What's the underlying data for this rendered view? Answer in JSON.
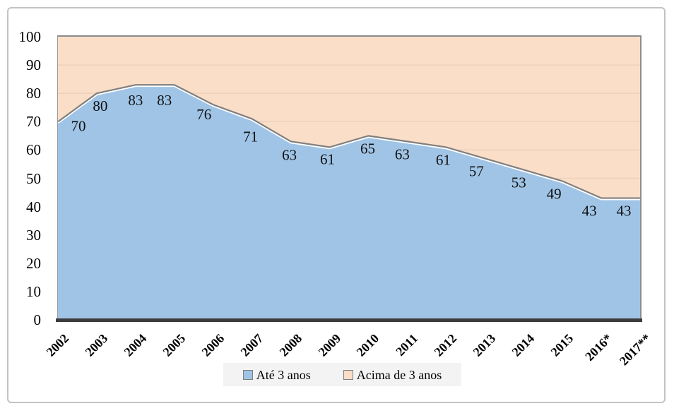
{
  "chart_data": {
    "type": "area",
    "stacked": true,
    "title": "",
    "xlabel": "",
    "ylabel": "",
    "categories": [
      "2002",
      "2003",
      "2004",
      "2005",
      "2006",
      "2007",
      "2008",
      "2009",
      "2010",
      "2011",
      "2012",
      "2013",
      "2014",
      "2015",
      "2016*",
      "2017**"
    ],
    "series": [
      {
        "name": "Até 3 anos",
        "values": [
          70,
          80,
          83,
          83,
          76,
          71,
          63,
          61,
          65,
          63,
          61,
          57,
          53,
          49,
          43,
          43
        ],
        "color": "#a0c4e6"
      },
      {
        "name": "Acima de 3 anos",
        "values": [
          30,
          20,
          17,
          17,
          24,
          29,
          37,
          39,
          35,
          37,
          39,
          43,
          47,
          51,
          57,
          57
        ],
        "color": "#fadec8"
      }
    ],
    "ylim": [
      0,
      100
    ],
    "y_ticks": [
      0,
      10,
      20,
      30,
      40,
      50,
      60,
      70,
      80,
      90,
      100
    ],
    "grid": "faint-horizontal-on-upper-area",
    "legend_position": "bottom",
    "data_labels_on": "Até 3 anos",
    "data_label_values": [
      70,
      80,
      83,
      83,
      76,
      71,
      63,
      61,
      65,
      63,
      61,
      57,
      53,
      49,
      43,
      43
    ]
  },
  "legend": {
    "items": [
      {
        "label": "Até 3 anos",
        "swatch_color": "#a0c4e6"
      },
      {
        "label": "Acima de 3 anos",
        "swatch_color": "#fadec8"
      }
    ]
  },
  "colors": {
    "boundary_line": "#7f7f7f",
    "boundary_edge": "#ffffff",
    "axis_line": "#3c3c3c",
    "plot_border": "#8c8c8c",
    "outer_border": "#c3c3c3",
    "legend_bg": "#f3f3f3",
    "gridline": "rgba(140,100,70,0.10)"
  }
}
